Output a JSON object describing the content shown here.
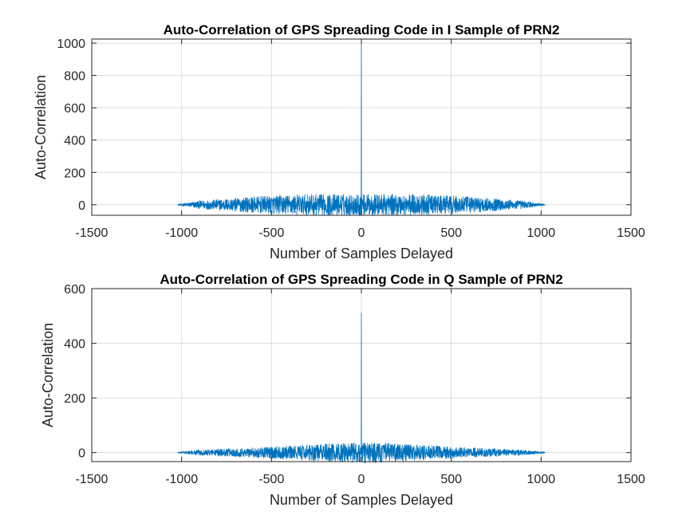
{
  "chart_data": [
    {
      "type": "line",
      "title": "Auto-Correlation of GPS Spreading Code in I Sample of PRN2",
      "xlabel": "Number of Samples Delayed",
      "ylabel": "Auto-Correlation",
      "xlim": [
        -1500,
        1500
      ],
      "ylim": [
        -65,
        1025
      ],
      "xticks": [
        -1500,
        -1000,
        -500,
        0,
        500,
        1000,
        1500
      ],
      "yticks": [
        0,
        200,
        400,
        600,
        800,
        1000
      ],
      "xtick_labels": [
        "-1500",
        "-1000",
        "-500",
        "0",
        "500",
        "1000",
        "1500"
      ],
      "ytick_labels": [
        "0",
        "200",
        "400",
        "600",
        "800",
        "1000"
      ],
      "grid": true,
      "line_color": "#0072BD",
      "series": [
        {
          "x_range": [
            -1022,
            1022
          ],
          "peak": {
            "x": 0,
            "y": 1023
          },
          "noise_envelope": [
            {
              "x": -1022,
              "amp": 3
            },
            {
              "x": -900,
              "amp": 25
            },
            {
              "x": -600,
              "amp": 50
            },
            {
              "x": -300,
              "amp": 65
            },
            {
              "x": 0,
              "amp": 65
            },
            {
              "x": 300,
              "amp": 65
            },
            {
              "x": 600,
              "amp": 50
            },
            {
              "x": 900,
              "amp": 25
            },
            {
              "x": 1022,
              "amp": 3
            }
          ]
        }
      ]
    },
    {
      "type": "line",
      "title": "Auto-Correlation of GPS Spreading Code in Q Sample of PRN2",
      "xlabel": "Number of Samples Delayed",
      "ylabel": "Auto-Correlation",
      "xlim": [
        -1500,
        1500
      ],
      "ylim": [
        -33,
        600
      ],
      "xticks": [
        -1500,
        -1000,
        -500,
        0,
        500,
        1000,
        1500
      ],
      "yticks": [
        0,
        200,
        400,
        600
      ],
      "xtick_labels": [
        "-1500",
        "-1000",
        "-500",
        "0",
        "500",
        "1000",
        "1500"
      ],
      "ytick_labels": [
        "0",
        "200",
        "400",
        "600"
      ],
      "grid": true,
      "line_color": "#0072BD",
      "series": [
        {
          "x_range": [
            -1022,
            1022
          ],
          "peak": {
            "x": 0,
            "y": 511
          },
          "noise_envelope": [
            {
              "x": -1022,
              "amp": 2
            },
            {
              "x": -900,
              "amp": 10
            },
            {
              "x": -600,
              "amp": 18
            },
            {
              "x": -300,
              "amp": 28
            },
            {
              "x": 0,
              "amp": 40
            },
            {
              "x": 300,
              "amp": 28
            },
            {
              "x": 600,
              "amp": 18
            },
            {
              "x": 900,
              "amp": 10
            },
            {
              "x": 1022,
              "amp": 2
            }
          ]
        }
      ]
    }
  ]
}
